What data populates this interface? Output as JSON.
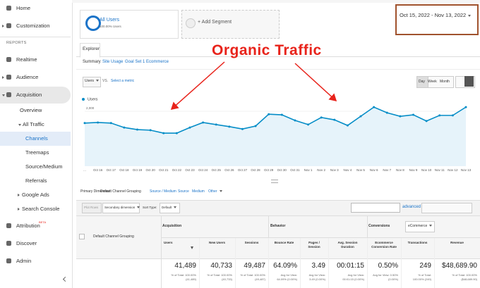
{
  "sidebar": {
    "items": [
      "Home",
      "Customization",
      "Realtime",
      "Audience",
      "Acquisition",
      "Overview",
      "All Traffic",
      "Channels",
      "Treemaps",
      "Source/Medium",
      "Referrals",
      "Google Ads",
      "Search Console",
      "Attribution",
      "Discover",
      "Admin"
    ],
    "reports_label": "REPORTS",
    "attribution_badge": "BETA"
  },
  "segments": {
    "name": "All Users",
    "detail": "100.00% Users",
    "add": "+ Add Segment"
  },
  "date_range": "Oct 15, 2022 - Nov 13, 2022",
  "tabs": {
    "active": "Explorer",
    "subtabs": [
      "Summary",
      "Site Usage",
      "Goal Set 1",
      "Ecommerce"
    ]
  },
  "chart_controls": {
    "metric": "Users",
    "vs": "VS.",
    "select": "Select a metric",
    "granularity": [
      "Day",
      "Week",
      "Month"
    ]
  },
  "chart_data": {
    "type": "line",
    "annotation": "Organic Traffic",
    "categories": [
      "...",
      "Oct 16",
      "Oct 17",
      "Oct 18",
      "Oct 19",
      "Oct 20",
      "Oct 21",
      "Oct 22",
      "Oct 23",
      "Oct 24",
      "Oct 25",
      "Oct 26",
      "Oct 27",
      "Oct 28",
      "Oct 29",
      "Oct 30",
      "Oct 31",
      "Nov 1",
      "Nov 2",
      "Nov 3",
      "Nov 4",
      "Nov 5",
      "Nov 6",
      "Nov 7",
      "Nov 8",
      "Nov 9",
      "Nov 10",
      "Nov 11",
      "Nov 12",
      "Nov 13"
    ],
    "series": [
      {
        "name": "Users",
        "color": "#058dc7",
        "values": [
          1600,
          1620,
          1600,
          1450,
          1380,
          1360,
          1260,
          1260,
          1450,
          1620,
          1550,
          1480,
          1400,
          1500,
          1900,
          1880,
          1690,
          1550,
          1790,
          1710,
          1520,
          1830,
          2140,
          1950,
          1830,
          1880,
          1670,
          1860,
          1860,
          2140
        ]
      }
    ],
    "ylim": [
      0,
      2300
    ],
    "yticks": [
      {
        "value": 1000,
        "label": "1,000"
      },
      {
        "value": 2000,
        "label": "2,000"
      }
    ]
  },
  "dimensions": {
    "label": "Primary Dimension:",
    "options": [
      "Default Channel Grouping",
      "Source / Medium",
      "Source",
      "Medium",
      "Other"
    ]
  },
  "toolbar": {
    "plot_rows": "Plot Rows",
    "secondary": "Secondary dimension",
    "sort_label": "Sort Type:",
    "sort": "Default",
    "advanced": "advanced"
  },
  "table": {
    "dimension_header": "Default Channel Grouping",
    "groups": [
      "Acquisition",
      "Behavior",
      "Conversions"
    ],
    "conversion_select": "eCommerce",
    "columns": [
      "Users",
      "New Users",
      "Sessions",
      "Bounce Rate",
      "Pages / Session",
      "Avg. Session Duration",
      "Ecommerce Conversion Rate",
      "Transactions",
      "Revenue"
    ],
    "totals": [
      {
        "value": "41,489",
        "detail": [
          "% of Total: 100.00%",
          "(41,489)"
        ]
      },
      {
        "value": "40,733",
        "detail": [
          "% of Total: 100.00%",
          "(40,733)"
        ]
      },
      {
        "value": "49,487",
        "detail": [
          "% of Total: 100.00%",
          "(49,487)"
        ]
      },
      {
        "value": "64.09%",
        "detail": [
          "Avg for View:",
          "64.09% (0.00%)"
        ]
      },
      {
        "value": "3.49",
        "detail": [
          "Avg for View:",
          "3.49 (0.00%)"
        ]
      },
      {
        "value": "00:01:15",
        "detail": [
          "Avg for View:",
          "00:01:15 (0.00%)"
        ]
      },
      {
        "value": "0.50%",
        "detail": [
          "Avg for View: 0.50%",
          "(0.00%)"
        ]
      },
      {
        "value": "249",
        "detail": [
          "% of Total:",
          "100.00% (249)"
        ]
      },
      {
        "value": "$48,689.90",
        "detail": [
          "% of Total: 100.00%",
          "($48,689.90)"
        ]
      }
    ]
  }
}
